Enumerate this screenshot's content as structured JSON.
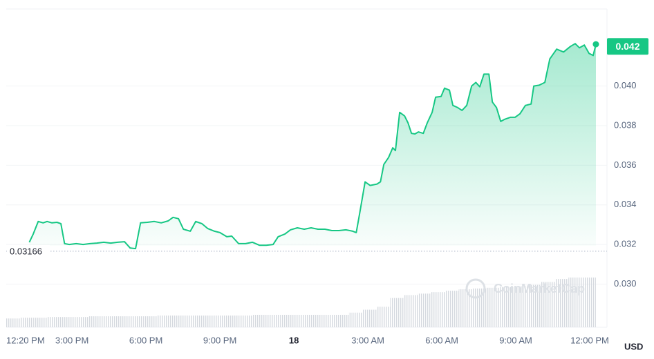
{
  "chart_data": {
    "type": "line",
    "color": "#16c784",
    "xlim": [
      12.333,
      36.7
    ],
    "xticks": [
      {
        "value": 12.333,
        "label": "12:20 PM"
      },
      {
        "value": 15,
        "label": "3:00 PM"
      },
      {
        "value": 18,
        "label": "6:00 PM"
      },
      {
        "value": 21,
        "label": "9:00 PM"
      },
      {
        "value": 24,
        "label": "18"
      },
      {
        "value": 27,
        "label": "3:00 AM"
      },
      {
        "value": 30,
        "label": "6:00 AM"
      },
      {
        "value": 33,
        "label": "9:00 AM"
      },
      {
        "value": 36,
        "label": "12:00 PM"
      }
    ],
    "ylim": [
      0.02782,
      0.04389
    ],
    "yticks": [
      {
        "value": 0.03,
        "label": "0.030"
      },
      0.032,
      0.034,
      0.036,
      0.038,
      {
        "value": 0.04,
        "label": "0.040"
      }
    ],
    "grid": true,
    "x": [
      13.27,
      13.43,
      13.63,
      13.83,
      13.99,
      14.19,
      14.39,
      14.55,
      14.7,
      14.89,
      15.17,
      15.45,
      15.73,
      16.01,
      16.29,
      16.57,
      16.85,
      17.13,
      17.36,
      17.58,
      17.78,
      18.06,
      18.34,
      18.62,
      18.9,
      19.1,
      19.32,
      19.52,
      19.8,
      20.02,
      20.27,
      20.5,
      20.78,
      21.0,
      21.28,
      21.48,
      21.76,
      22.04,
      22.32,
      22.6,
      22.88,
      23.16,
      23.36,
      23.64,
      23.86,
      24.14,
      24.42,
      24.7,
      24.98,
      25.26,
      25.54,
      25.83,
      26.11,
      26.39,
      26.53,
      26.67,
      26.89,
      27.09,
      27.37,
      27.51,
      27.65,
      27.84,
      28.01,
      28.12,
      28.29,
      28.49,
      28.63,
      28.77,
      28.91,
      29.05,
      29.25,
      29.41,
      29.61,
      29.75,
      29.97,
      30.11,
      30.31,
      30.45,
      30.65,
      30.82,
      31.01,
      31.21,
      31.38,
      31.54,
      31.71,
      31.91,
      32.05,
      32.22,
      32.39,
      32.55,
      32.78,
      32.97,
      33.17,
      33.39,
      33.62,
      33.73,
      33.95,
      34.18,
      34.38,
      34.66,
      34.94,
      35.22,
      35.41,
      35.58,
      35.78,
      35.97,
      36.14,
      36.25
    ],
    "values": [
      0.03211,
      0.03253,
      0.03316,
      0.03309,
      0.03316,
      0.03309,
      0.03312,
      0.03305,
      0.03204,
      0.032,
      0.03204,
      0.032,
      0.03204,
      0.03207,
      0.03211,
      0.03207,
      0.03211,
      0.03214,
      0.03182,
      0.03179,
      0.03309,
      0.03312,
      0.03316,
      0.03309,
      0.03319,
      0.03337,
      0.0333,
      0.03277,
      0.03267,
      0.03316,
      0.03305,
      0.03281,
      0.03267,
      0.0326,
      0.03239,
      0.03242,
      0.03204,
      0.03204,
      0.03211,
      0.03196,
      0.03196,
      0.032,
      0.03239,
      0.03253,
      0.03274,
      0.03284,
      0.03277,
      0.03284,
      0.03277,
      0.03277,
      0.0327,
      0.0327,
      0.03274,
      0.03267,
      0.0326,
      0.03358,
      0.03516,
      0.03498,
      0.03505,
      0.03516,
      0.03604,
      0.03639,
      0.03688,
      0.03674,
      0.03867,
      0.03849,
      0.03814,
      0.03761,
      0.03758,
      0.03768,
      0.03761,
      0.03814,
      0.03867,
      0.03944,
      0.03947,
      0.03989,
      0.03979,
      0.03902,
      0.03891,
      0.03877,
      0.03902,
      0.04,
      0.04018,
      0.03996,
      0.0406,
      0.0406,
      0.03919,
      0.03891,
      0.03821,
      0.03832,
      0.03842,
      0.03842,
      0.0386,
      0.03902,
      0.03909,
      0.04,
      0.04004,
      0.04018,
      0.04137,
      0.04186,
      0.04172,
      0.042,
      0.04214,
      0.04193,
      0.04207,
      0.04165,
      0.04154,
      0.04211
    ],
    "volume": {
      "color": "#d5d9df",
      "values": [
        12,
        13,
        13,
        14,
        14,
        14,
        15,
        15,
        15,
        15,
        15,
        16,
        16,
        16,
        16,
        16,
        16,
        16,
        17,
        17,
        17,
        17,
        17,
        17,
        17,
        20,
        24,
        28,
        40,
        44,
        46,
        48,
        50,
        52,
        53,
        54,
        55,
        56,
        58,
        62,
        66,
        68,
        68
      ]
    },
    "open_price": 0.03166,
    "current_price": 0.042,
    "watermark": "CoinMarketCap",
    "unit": "USD"
  }
}
